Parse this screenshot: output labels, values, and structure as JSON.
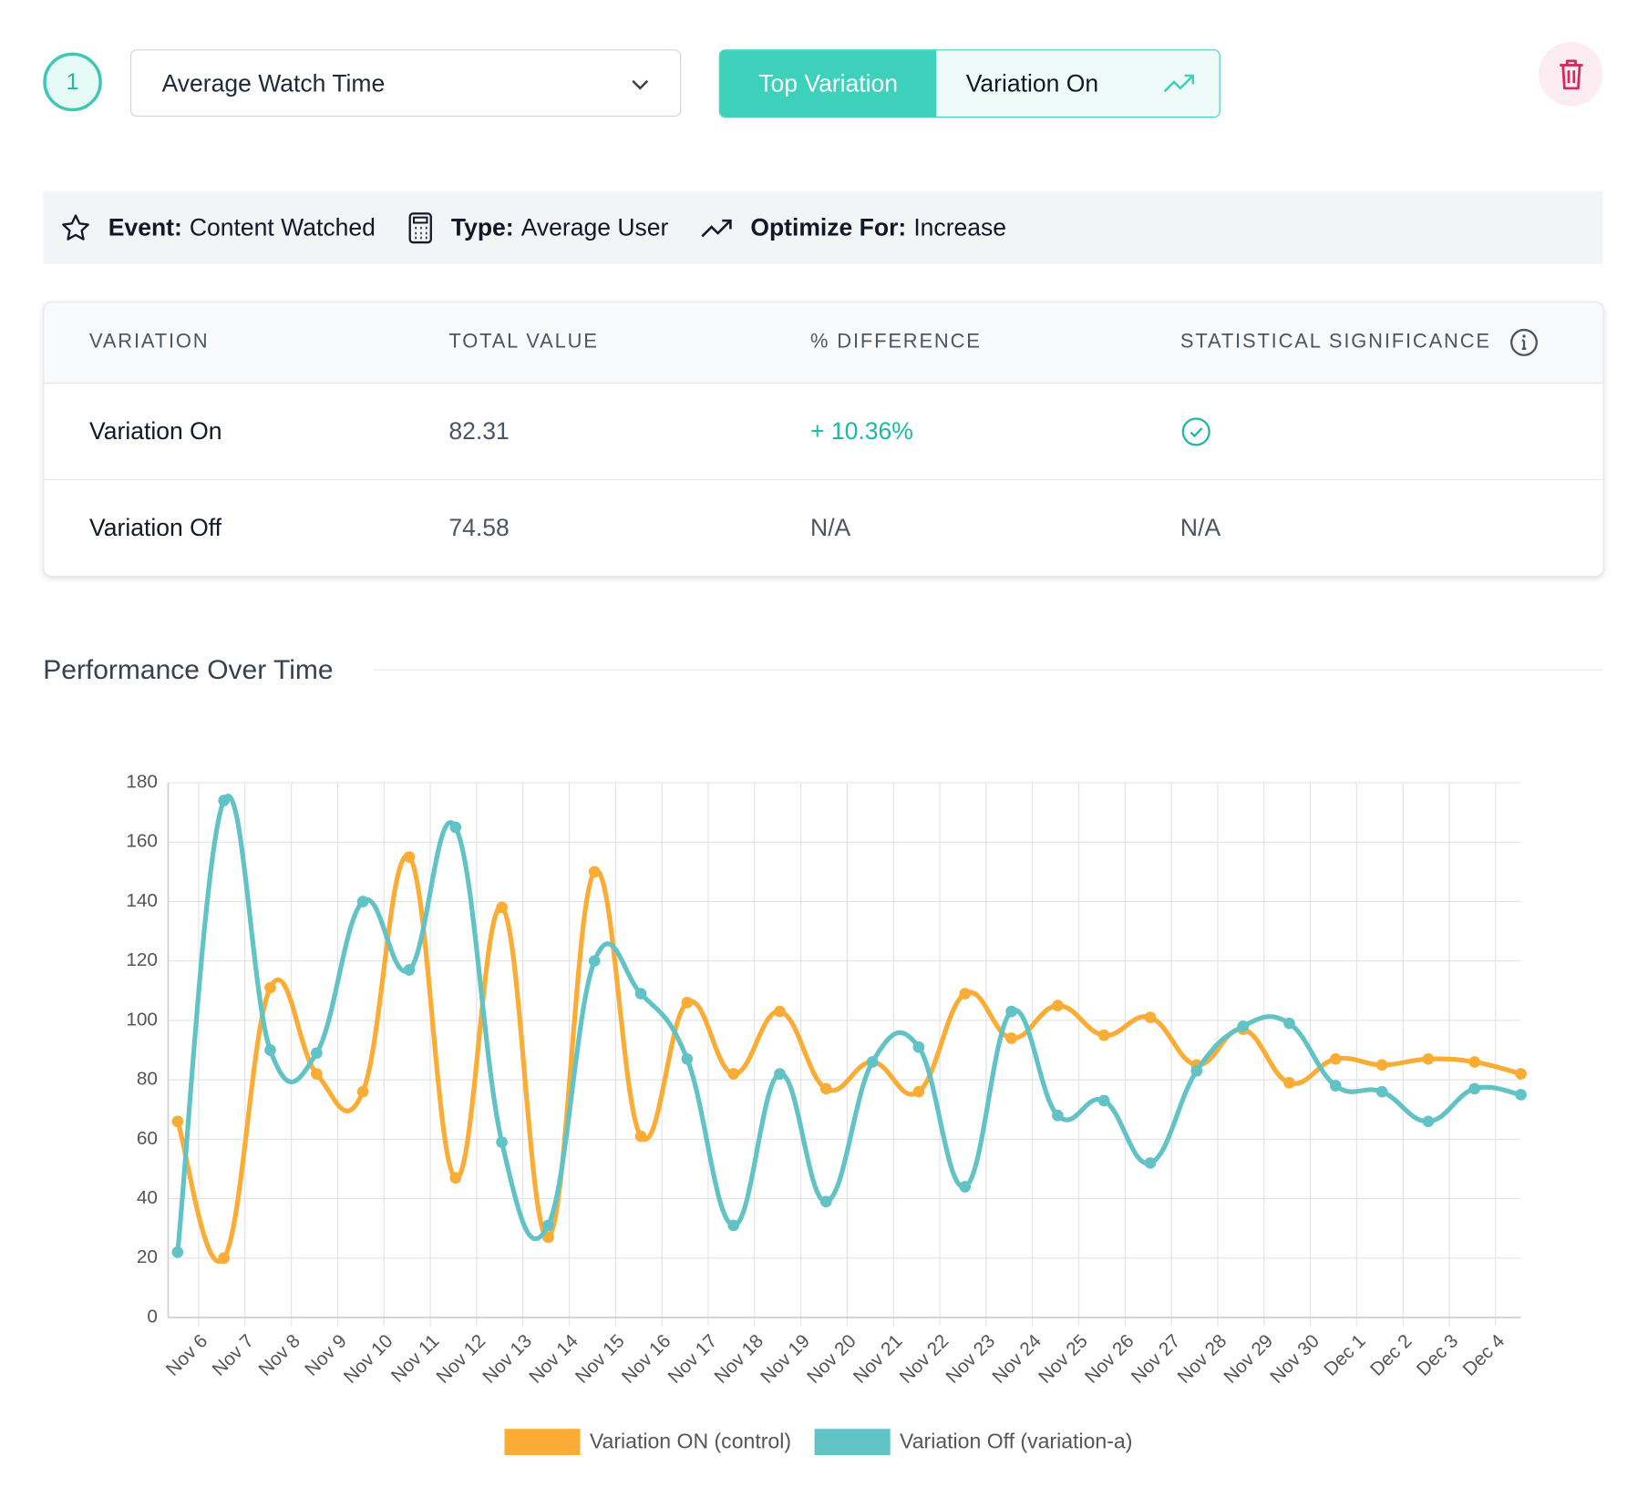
{
  "step": "1",
  "metric_select": "Average Watch Time",
  "toggle": {
    "active": "Top Variation",
    "other": "Variation On"
  },
  "info": [
    {
      "label": "Event:",
      "value": "Content Watched"
    },
    {
      "label": "Type:",
      "value": "Average User"
    },
    {
      "label": "Optimize For:",
      "value": "Increase"
    }
  ],
  "table": {
    "headers": [
      "VARIATION",
      "TOTAL VALUE",
      "% DIFFERENCE",
      "STATISTICAL SIGNIFICANCE"
    ],
    "rows": [
      {
        "variation": "Variation On",
        "total_value": "82.31",
        "difference": "+ 10.36%"
      },
      {
        "variation": "Variation Off",
        "total_value": "74.58",
        "difference": "N/A",
        "significance": "N/A"
      }
    ]
  },
  "section_title": "Performance Over Time",
  "chart_data": {
    "type": "line",
    "categories": [
      null,
      "Nov 6",
      "Nov 7",
      "Nov 8",
      "Nov 9",
      "Nov 10",
      "Nov 11",
      "Nov 12",
      "Nov 13",
      "Nov 14",
      "Nov 15",
      "Nov 16",
      "Nov 17",
      "Nov 18",
      "Nov 19",
      "Nov 20",
      "Nov 21",
      "Nov 22",
      "Nov 23",
      "Nov 24",
      "Nov 25",
      "Nov 26",
      "Nov 27",
      "Nov 28",
      "Nov 29",
      "Nov 30",
      "Dec 1",
      "Dec 2",
      "Dec 3",
      "Dec 4"
    ],
    "series": [
      {
        "name": "Variation ON (control)",
        "color": "#fbac34",
        "values": [
          66,
          20,
          111,
          82,
          76,
          155,
          47,
          138,
          27,
          150,
          61,
          106,
          82,
          103,
          77,
          86,
          76,
          109,
          94,
          105,
          95,
          101,
          85,
          97,
          79,
          87,
          85,
          87,
          86,
          82
        ]
      },
      {
        "name": "Variation Off (variation-a)",
        "color": "#62c3c6",
        "values": [
          22,
          174,
          90,
          89,
          140,
          117,
          165,
          59,
          31,
          120,
          109,
          87,
          31,
          82,
          39,
          86,
          91,
          44,
          103,
          68,
          73,
          52,
          83,
          98,
          99,
          78,
          76,
          66,
          77,
          75
        ]
      }
    ],
    "ylim": [
      0,
      180
    ],
    "yticks": [
      0,
      20,
      40,
      60,
      80,
      100,
      120,
      140,
      160,
      180
    ],
    "grid": true
  }
}
